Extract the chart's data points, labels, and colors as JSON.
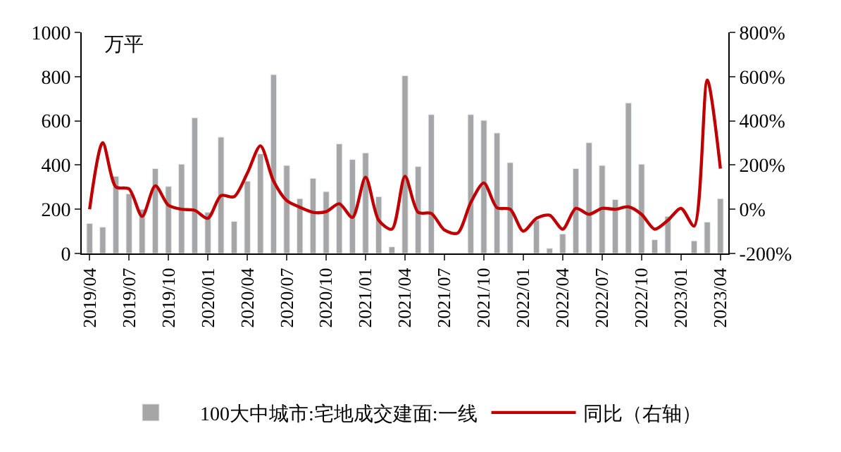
{
  "chart_data": {
    "type": "bar",
    "ylabel": "万平",
    "categories": [
      "2019/04",
      null,
      null,
      "2019/07",
      null,
      null,
      "2019/10",
      null,
      null,
      "2020/01",
      null,
      null,
      "2020/04",
      null,
      null,
      "2020/07",
      null,
      null,
      "2020/10",
      null,
      null,
      "2021/01",
      null,
      null,
      "2021/04",
      null,
      null,
      "2021/07",
      null,
      null,
      "2021/10",
      null,
      null,
      "2022/01",
      null,
      null,
      "2022/04",
      null,
      null,
      "2022/07",
      null,
      null,
      "2022/10",
      null,
      null,
      "2023/01",
      null,
      null,
      "2023/04"
    ],
    "series": [
      {
        "name": "100大中城市:宅地成交建面:一线",
        "color": "#a6a6a6",
        "values": [
          136,
          119,
          349,
          270,
          200,
          384,
          303,
          404,
          614,
          186,
          526,
          145,
          327,
          451,
          809,
          398,
          248,
          340,
          280,
          496,
          425,
          455,
          257,
          30,
          804,
          393,
          628,
          null,
          null,
          628,
          602,
          545,
          411,
          null,
          150,
          23,
          88,
          384,
          501,
          398,
          244,
          681,
          404,
          62,
          168,
          null,
          57,
          142,
          248
        ]
      },
      {
        "name": "同比（右轴）",
        "type": "line",
        "axis": "y2",
        "color": "#c00000",
        "values": [
          0,
          301,
          101,
          92,
          -32,
          106,
          18,
          0,
          -5,
          -41,
          62,
          57,
          163,
          287,
          127,
          39,
          9,
          -14,
          -11,
          25,
          -37,
          145,
          -50,
          -90,
          149,
          -14,
          -19,
          -94,
          -108,
          30,
          119,
          7,
          0,
          -99,
          -41,
          -27,
          -90,
          4,
          -23,
          4,
          0,
          11,
          -23,
          -90,
          -50,
          4,
          -76,
          584,
          184
        ]
      }
    ],
    "ylim": [
      0,
      1000
    ],
    "yticks": [
      0,
      200,
      400,
      600,
      800,
      1000
    ],
    "y2lim": [
      -200,
      800
    ],
    "y2ticks": [
      {
        "value": -200,
        "label": "-200%"
      },
      {
        "value": 0,
        "label": "0%"
      },
      {
        "value": 200,
        "label": "200%"
      },
      {
        "value": 400,
        "label": "400%"
      },
      {
        "value": 600,
        "label": "600%"
      },
      {
        "value": 800,
        "label": "800%"
      }
    ],
    "legend": "bottom",
    "grid": false,
    "marker": "none",
    "line_style": "solid"
  }
}
